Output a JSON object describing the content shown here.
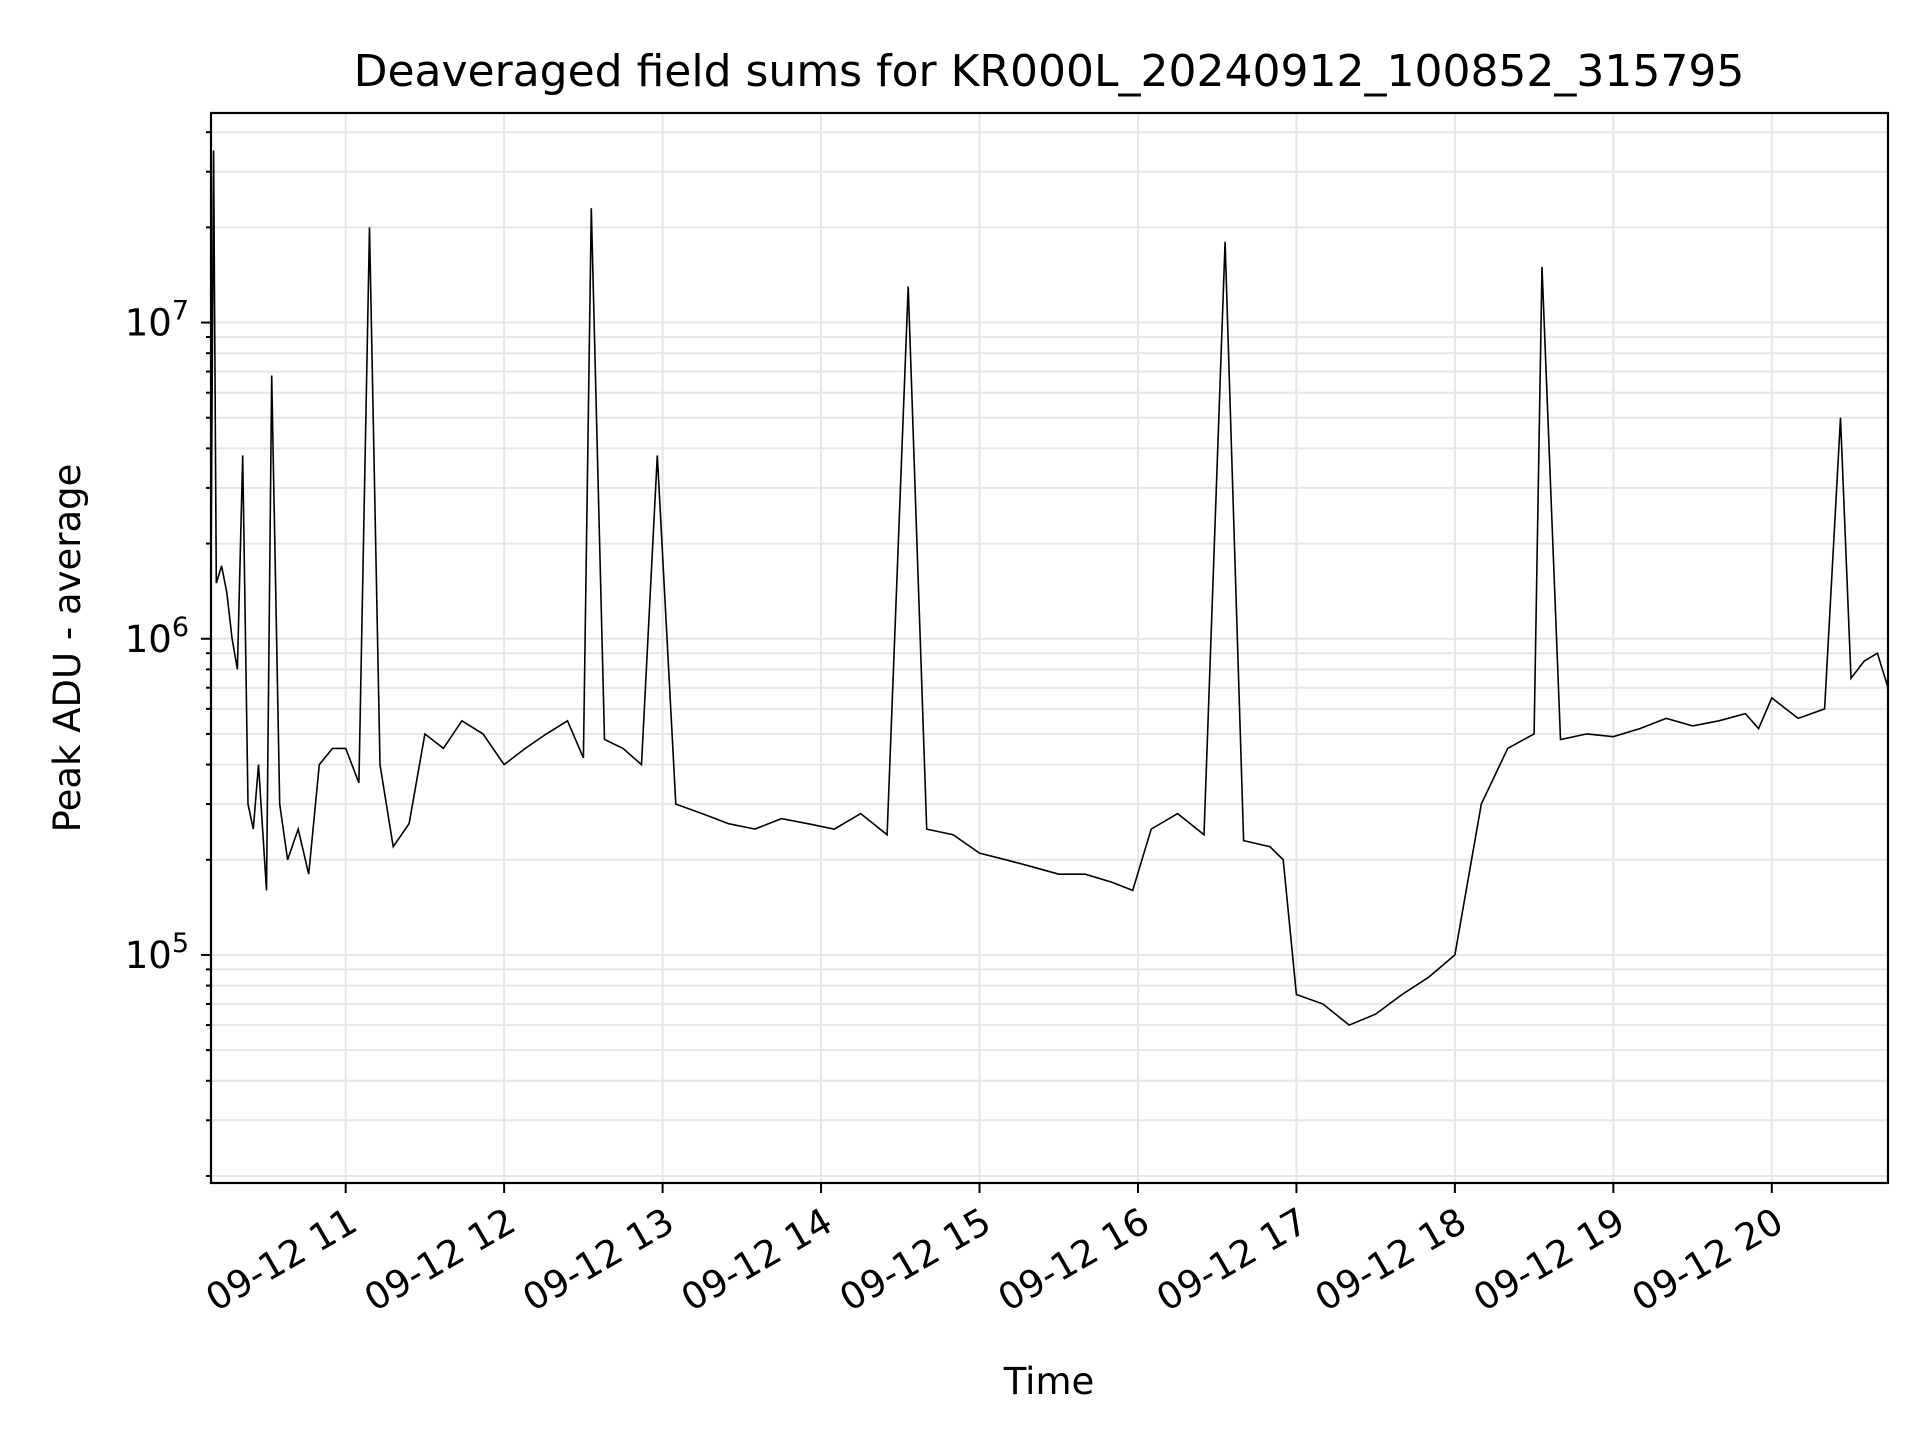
{
  "chart_data": {
    "type": "line",
    "title": "Deaveraged field sums for KR000L_20240912_100852_315795",
    "xlabel": "Time",
    "ylabel": "Peak ADU - average",
    "yscale": "log",
    "grid": true,
    "legend": "none",
    "xlim": [
      "2024-09-12 10:09",
      "2024-09-12 20:44"
    ],
    "ylim": [
      19000,
      46000000
    ],
    "x_ticks": [
      {
        "value": "2024-09-12 11:00",
        "label": "09-12 11"
      },
      {
        "value": "2024-09-12 12:00",
        "label": "09-12 12"
      },
      {
        "value": "2024-09-12 13:00",
        "label": "09-12 13"
      },
      {
        "value": "2024-09-12 14:00",
        "label": "09-12 14"
      },
      {
        "value": "2024-09-12 15:00",
        "label": "09-12 15"
      },
      {
        "value": "2024-09-12 16:00",
        "label": "09-12 16"
      },
      {
        "value": "2024-09-12 17:00",
        "label": "09-12 17"
      },
      {
        "value": "2024-09-12 18:00",
        "label": "09-12 18"
      },
      {
        "value": "2024-09-12 19:00",
        "label": "09-12 19"
      },
      {
        "value": "2024-09-12 20:00",
        "label": "09-12 20"
      }
    ],
    "y_ticks": [
      {
        "value": 100000,
        "base": "10",
        "exp": "5"
      },
      {
        "value": 1000000,
        "base": "10",
        "exp": "6"
      },
      {
        "value": 10000000,
        "base": "10",
        "exp": "7"
      }
    ],
    "colors": {
      "line": "#000000",
      "grid": "#e6e6e6",
      "axes": "#000000"
    },
    "series": [
      {
        "x": [
          "2024-09-12 10:09",
          "2024-09-12 10:10",
          "2024-09-12 10:11",
          "2024-09-12 10:13",
          "2024-09-12 10:15",
          "2024-09-12 10:17",
          "2024-09-12 10:19",
          "2024-09-12 10:21",
          "2024-09-12 10:23",
          "2024-09-12 10:25",
          "2024-09-12 10:27",
          "2024-09-12 10:30",
          "2024-09-12 10:32",
          "2024-09-12 10:35",
          "2024-09-12 10:38",
          "2024-09-12 10:42",
          "2024-09-12 10:46",
          "2024-09-12 10:50",
          "2024-09-12 10:55",
          "2024-09-12 11:00",
          "2024-09-12 11:05",
          "2024-09-12 11:09",
          "2024-09-12 11:13",
          "2024-09-12 11:18",
          "2024-09-12 11:24",
          "2024-09-12 11:30",
          "2024-09-12 11:37",
          "2024-09-12 11:44",
          "2024-09-12 11:52",
          "2024-09-12 12:00",
          "2024-09-12 12:08",
          "2024-09-12 12:16",
          "2024-09-12 12:24",
          "2024-09-12 12:30",
          "2024-09-12 12:33",
          "2024-09-12 12:38",
          "2024-09-12 12:45",
          "2024-09-12 12:52",
          "2024-09-12 12:58",
          "2024-09-12 13:05",
          "2024-09-12 13:15",
          "2024-09-12 13:25",
          "2024-09-12 13:35",
          "2024-09-12 13:45",
          "2024-09-12 13:55",
          "2024-09-12 14:05",
          "2024-09-12 14:15",
          "2024-09-12 14:25",
          "2024-09-12 14:33",
          "2024-09-12 14:40",
          "2024-09-12 14:50",
          "2024-09-12 15:00",
          "2024-09-12 15:10",
          "2024-09-12 15:20",
          "2024-09-12 15:30",
          "2024-09-12 15:40",
          "2024-09-12 15:50",
          "2024-09-12 15:58",
          "2024-09-12 16:05",
          "2024-09-12 16:15",
          "2024-09-12 16:25",
          "2024-09-12 16:33",
          "2024-09-12 16:40",
          "2024-09-12 16:50",
          "2024-09-12 16:55",
          "2024-09-12 17:00",
          "2024-09-12 17:10",
          "2024-09-12 17:20",
          "2024-09-12 17:30",
          "2024-09-12 17:40",
          "2024-09-12 17:50",
          "2024-09-12 18:00",
          "2024-09-12 18:10",
          "2024-09-12 18:20",
          "2024-09-12 18:30",
          "2024-09-12 18:33",
          "2024-09-12 18:40",
          "2024-09-12 18:50",
          "2024-09-12 19:00",
          "2024-09-12 19:10",
          "2024-09-12 19:20",
          "2024-09-12 19:30",
          "2024-09-12 19:40",
          "2024-09-12 19:50",
          "2024-09-12 19:55",
          "2024-09-12 20:00",
          "2024-09-12 20:10",
          "2024-09-12 20:20",
          "2024-09-12 20:26",
          "2024-09-12 20:30",
          "2024-09-12 20:35",
          "2024-09-12 20:40",
          "2024-09-12 20:44"
        ],
        "y": [
          1600000,
          35000000,
          1500000,
          1700000,
          1400000,
          1000000,
          800000,
          3800000,
          300000,
          250000,
          400000,
          160000,
          6800000,
          300000,
          200000,
          250000,
          180000,
          400000,
          450000,
          450000,
          350000,
          20000000,
          400000,
          220000,
          260000,
          500000,
          450000,
          550000,
          500000,
          400000,
          450000,
          500000,
          550000,
          420000,
          23000000,
          480000,
          450000,
          400000,
          3800000,
          300000,
          280000,
          260000,
          250000,
          270000,
          260000,
          250000,
          280000,
          240000,
          13000000,
          250000,
          240000,
          210000,
          200000,
          190000,
          180000,
          180000,
          170000,
          160000,
          250000,
          280000,
          240000,
          18000000,
          230000,
          220000,
          200000,
          75000,
          70000,
          60000,
          65000,
          75000,
          85000,
          100000,
          300000,
          450000,
          500000,
          15000000,
          480000,
          500000,
          490000,
          520000,
          560000,
          530000,
          550000,
          580000,
          520000,
          650000,
          560000,
          600000,
          5000000,
          750000,
          850000,
          900000,
          700000
        ]
      }
    ]
  }
}
